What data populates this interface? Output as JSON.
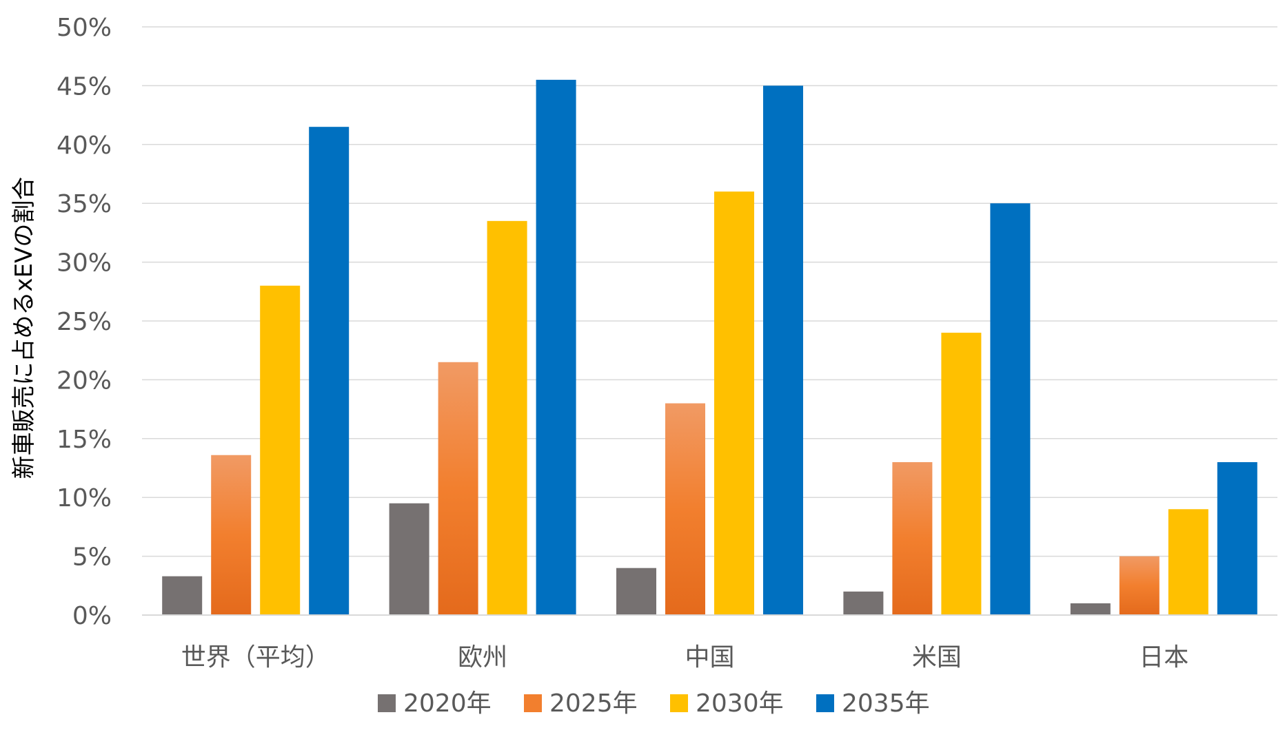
{
  "chart_data": {
    "type": "bar",
    "title": "",
    "xlabel": "",
    "ylabel": "新車販売に占めるxEVの割合",
    "ylim": [
      0,
      50
    ],
    "yticks": [
      "0%",
      "5%",
      "10%",
      "15%",
      "20%",
      "25%",
      "30%",
      "35%",
      "40%",
      "45%",
      "50%"
    ],
    "categories": [
      "世界（平均）",
      "欧州",
      "中国",
      "米国",
      "日本"
    ],
    "series": [
      {
        "name": "2020年",
        "color": "#767171",
        "gradient": false,
        "values": [
          3.3,
          9.5,
          4.0,
          2.0,
          1.0
        ]
      },
      {
        "name": "2025年",
        "color": "#ED7D31",
        "gradient": true,
        "values": [
          13.6,
          21.5,
          18.0,
          13.0,
          5.0
        ]
      },
      {
        "name": "2030年",
        "color": "#FFC000",
        "gradient": false,
        "values": [
          28.0,
          33.5,
          36.0,
          24.0,
          9.0
        ]
      },
      {
        "name": "2035年",
        "color": "#0070C0",
        "gradient": false,
        "values": [
          41.5,
          45.5,
          45.0,
          35.0,
          13.0
        ]
      }
    ],
    "grid": true,
    "legend_position": "bottom"
  }
}
